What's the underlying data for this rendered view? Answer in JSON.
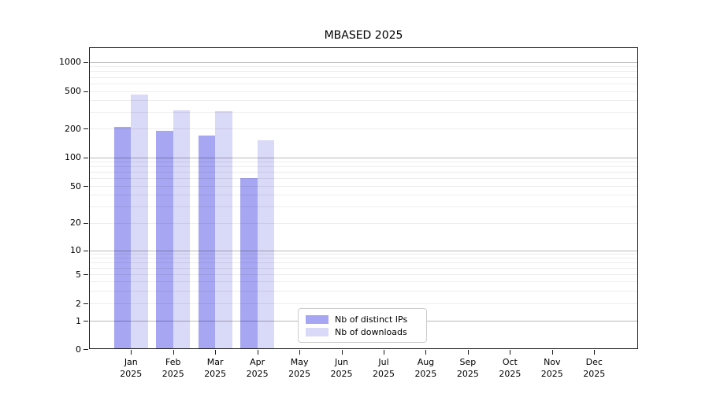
{
  "title": "MBASED 2025",
  "chart_data": {
    "type": "bar",
    "title": "MBASED 2025",
    "categories": [
      "Jan 2025",
      "Feb 2025",
      "Mar 2025",
      "Apr 2025",
      "May 2025",
      "Jun 2025",
      "Jul 2025",
      "Aug 2025",
      "Sep 2025",
      "Oct 2025",
      "Nov 2025",
      "Dec 2025"
    ],
    "series": [
      {
        "name": "Nb of distinct IPs",
        "color": "#a6a6f2",
        "values": [
          208,
          190,
          168,
          61,
          null,
          null,
          null,
          null,
          null,
          null,
          null,
          null
        ]
      },
      {
        "name": "Nb of downloads",
        "color": "#d9d9f8",
        "values": [
          455,
          310,
          304,
          150,
          null,
          null,
          null,
          null,
          null,
          null,
          null,
          null
        ]
      }
    ],
    "xlabel": "",
    "ylabel": "",
    "y_axis": {
      "scale": "symlog",
      "ticks": [
        0,
        1,
        2,
        5,
        10,
        20,
        50,
        100,
        200,
        500,
        1000
      ],
      "range": [
        0,
        1400
      ]
    },
    "grid": {
      "horizontal": true,
      "minor": true,
      "vertical": false
    },
    "legend": {
      "position": "lower center",
      "frame": true
    }
  }
}
